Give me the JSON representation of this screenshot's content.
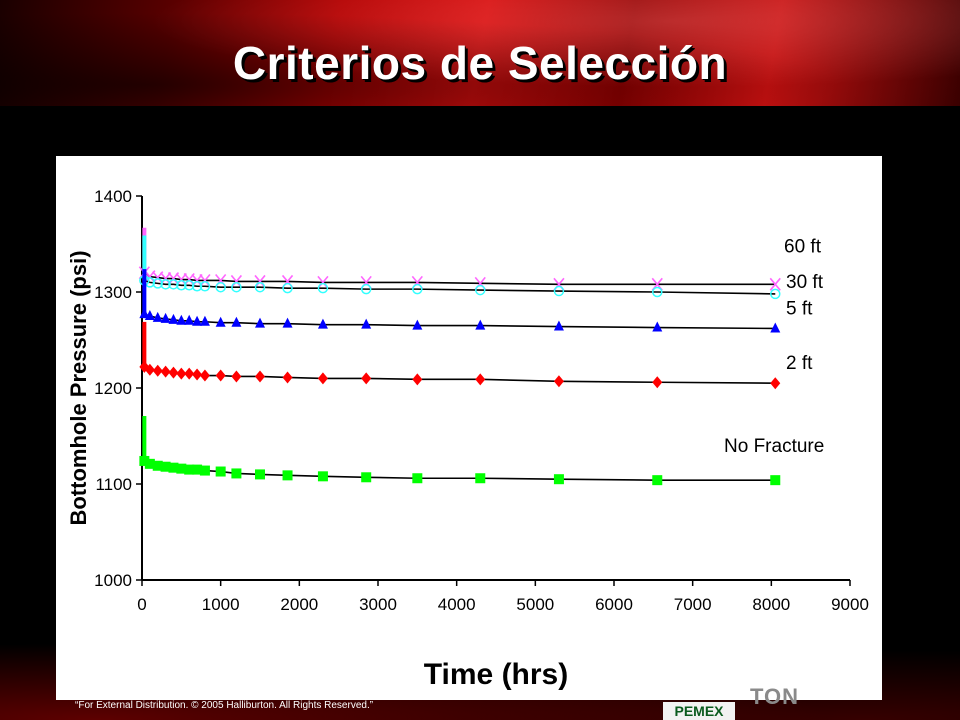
{
  "slide": {
    "title": "Criterios de Selección",
    "footnote": "“For External Distribution. © 2005 Halliburton. All Rights Reserved.”",
    "logo_pemex": "PEMEX",
    "logo_brand": "TON"
  },
  "chart_data": {
    "type": "line",
    "title": "",
    "xlabel": "Time (hrs)",
    "ylabel": "Bottomhole Pressure (psi)",
    "xlim": [
      0,
      9000
    ],
    "ylim": [
      1000,
      1400
    ],
    "x_ticks": [
      0,
      1000,
      2000,
      3000,
      4000,
      5000,
      6000,
      7000,
      8000,
      9000
    ],
    "y_ticks": [
      1000,
      1100,
      1200,
      1300,
      1400
    ],
    "grid": false,
    "legend": "none",
    "series": [
      {
        "name": "60 ft",
        "color": "#ff66ff",
        "marker": "x",
        "x": [
          30,
          100,
          200,
          300,
          400,
          500,
          600,
          700,
          800,
          1000,
          1200,
          1500,
          1850,
          2300,
          2850,
          3500,
          4300,
          5300,
          6550,
          8050
        ],
        "y": [
          1320,
          1316,
          1315,
          1314,
          1314,
          1313,
          1313,
          1312,
          1312,
          1312,
          1311,
          1311,
          1311,
          1310,
          1310,
          1310,
          1309,
          1308,
          1308,
          1308
        ]
      },
      {
        "name": "30 ft",
        "color": "#33ffff",
        "marker": "circle",
        "x": [
          30,
          100,
          200,
          300,
          400,
          500,
          600,
          700,
          800,
          1000,
          1200,
          1500,
          1850,
          2300,
          2850,
          3500,
          4300,
          5300,
          6550,
          8050
        ],
        "y": [
          1312,
          1310,
          1309,
          1308,
          1308,
          1307,
          1307,
          1306,
          1306,
          1305,
          1305,
          1305,
          1304,
          1304,
          1303,
          1303,
          1302,
          1301,
          1300,
          1298
        ]
      },
      {
        "name": "5 ft",
        "color": "#0000ff",
        "marker": "triangle",
        "x": [
          30,
          100,
          200,
          300,
          400,
          500,
          600,
          700,
          800,
          1000,
          1200,
          1500,
          1850,
          2300,
          2850,
          3500,
          4300,
          5300,
          6550,
          8050
        ],
        "y": [
          1277,
          1275,
          1273,
          1272,
          1271,
          1270,
          1270,
          1269,
          1269,
          1268,
          1268,
          1267,
          1267,
          1266,
          1266,
          1265,
          1265,
          1264,
          1263,
          1262
        ]
      },
      {
        "name": "2 ft",
        "color": "#ff0000",
        "marker": "diamond",
        "x": [
          30,
          100,
          200,
          300,
          400,
          500,
          600,
          700,
          800,
          1000,
          1200,
          1500,
          1850,
          2300,
          2850,
          3500,
          4300,
          5300,
          6550,
          8050
        ],
        "y": [
          1222,
          1219,
          1218,
          1217,
          1216,
          1215,
          1215,
          1214,
          1213,
          1213,
          1212,
          1212,
          1211,
          1210,
          1210,
          1209,
          1209,
          1207,
          1206,
          1205
        ]
      },
      {
        "name": "No Fracture",
        "color": "#00ff00",
        "marker": "square",
        "x": [
          30,
          100,
          200,
          300,
          400,
          500,
          600,
          700,
          800,
          1000,
          1200,
          1500,
          1850,
          2300,
          2850,
          3500,
          4300,
          5300,
          6550,
          8050
        ],
        "y": [
          1124,
          1121,
          1119,
          1118,
          1117,
          1116,
          1115,
          1115,
          1114,
          1113,
          1111,
          1110,
          1109,
          1108,
          1107,
          1106,
          1106,
          1105,
          1104,
          1104
        ]
      }
    ]
  }
}
